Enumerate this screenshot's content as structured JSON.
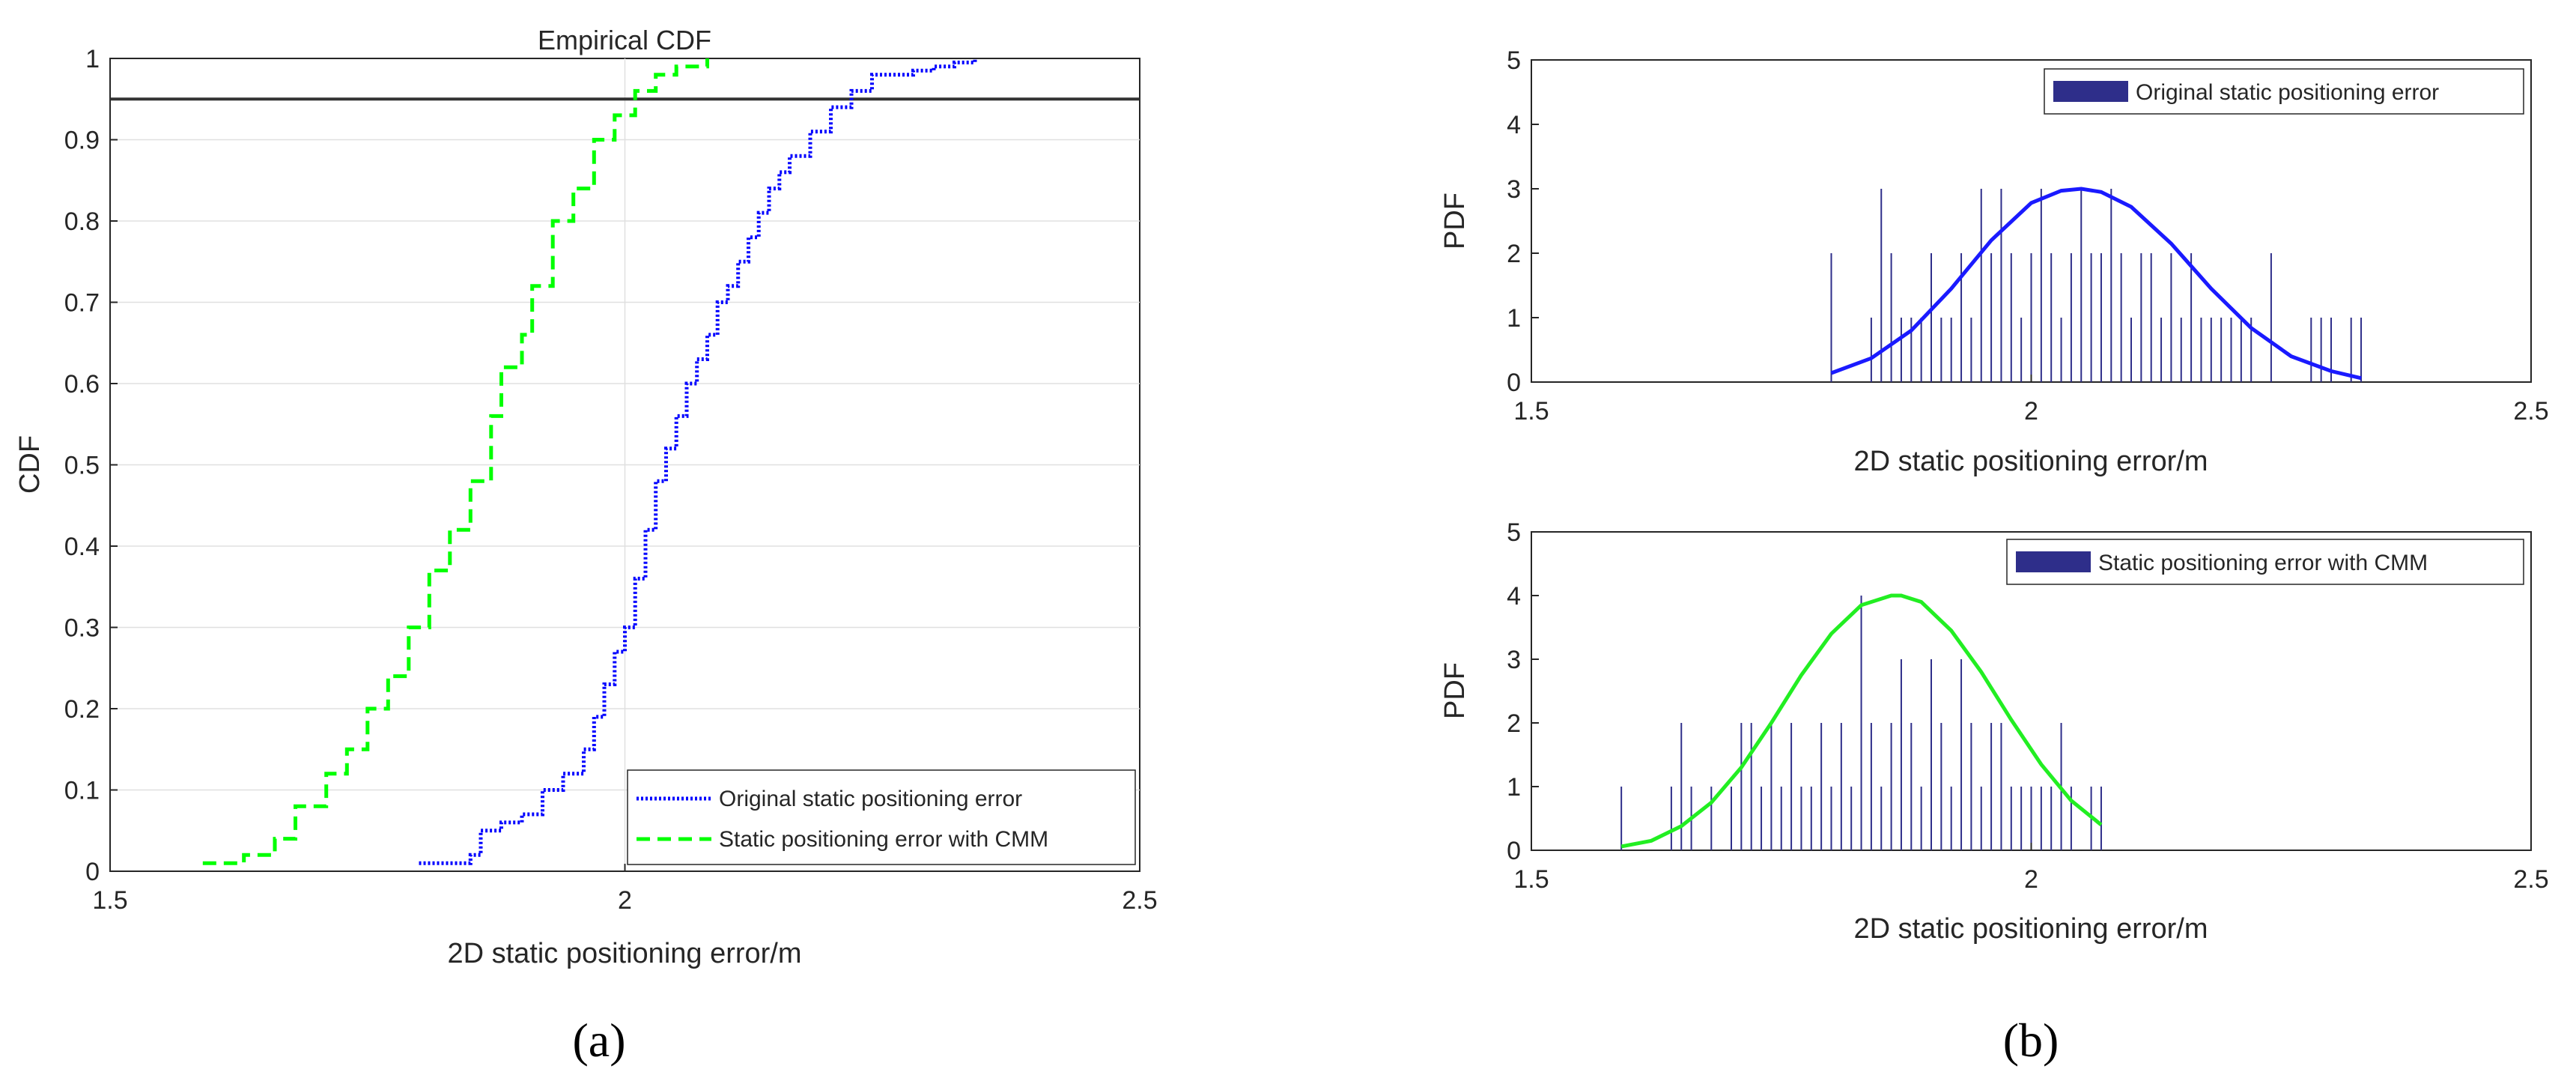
{
  "chart_data": [
    {
      "panel": "a",
      "type": "line",
      "title": "Empirical CDF",
      "xlabel": "2D static positioning error/m",
      "ylabel": "CDF",
      "xlim": [
        1.5,
        2.5
      ],
      "ylim": [
        0,
        1
      ],
      "xticks": [
        "1.5",
        "2",
        "2.5"
      ],
      "yticks": [
        "0",
        "0.1",
        "0.2",
        "0.3",
        "0.4",
        "0.5",
        "0.6",
        "0.7",
        "0.8",
        "0.9",
        "1"
      ],
      "grid": true,
      "legend_position": "bottom-right",
      "reference_line_y": 0.95,
      "reference_line_color": "#333333",
      "series": [
        {
          "name": "Original static positioning error",
          "color": "#0000ff",
          "style": "dotted",
          "x": [
            1.8,
            1.85,
            1.86,
            1.88,
            1.9,
            1.92,
            1.94,
            1.96,
            1.97,
            1.98,
            1.99,
            2.0,
            2.01,
            2.02,
            2.03,
            2.04,
            2.05,
            2.06,
            2.07,
            2.08,
            2.09,
            2.1,
            2.11,
            2.12,
            2.13,
            2.14,
            2.15,
            2.16,
            2.18,
            2.2,
            2.22,
            2.24,
            2.26,
            2.28,
            2.3,
            2.32,
            2.34
          ],
          "y": [
            0.01,
            0.02,
            0.05,
            0.06,
            0.07,
            0.1,
            0.12,
            0.15,
            0.19,
            0.23,
            0.27,
            0.3,
            0.36,
            0.42,
            0.48,
            0.52,
            0.56,
            0.6,
            0.63,
            0.66,
            0.7,
            0.72,
            0.75,
            0.78,
            0.81,
            0.84,
            0.86,
            0.88,
            0.91,
            0.94,
            0.96,
            0.98,
            0.98,
            0.985,
            0.99,
            0.995,
            1.0
          ]
        },
        {
          "name": "Static positioning error with CMM",
          "color": "#00ff00",
          "style": "dashed",
          "x": [
            1.59,
            1.63,
            1.66,
            1.68,
            1.71,
            1.73,
            1.75,
            1.77,
            1.79,
            1.81,
            1.83,
            1.85,
            1.87,
            1.88,
            1.9,
            1.91,
            1.93,
            1.95,
            1.97,
            1.99,
            2.01,
            2.03,
            2.05,
            2.08
          ],
          "y": [
            0.01,
            0.02,
            0.04,
            0.08,
            0.12,
            0.15,
            0.2,
            0.24,
            0.3,
            0.37,
            0.42,
            0.48,
            0.56,
            0.62,
            0.66,
            0.72,
            0.8,
            0.84,
            0.9,
            0.93,
            0.96,
            0.98,
            0.99,
            1.0
          ]
        }
      ],
      "caption": "(a)"
    },
    {
      "panel": "b-top",
      "type": "bar",
      "title": "",
      "xlabel": "2D static positioning error/m",
      "ylabel": "PDF",
      "xlim": [
        1.5,
        2.5
      ],
      "ylim": [
        0,
        5
      ],
      "xticks": [
        "1.5",
        "2",
        "2.5"
      ],
      "yticks": [
        "0",
        "1",
        "2",
        "3",
        "4",
        "5"
      ],
      "legend_position": "top-right",
      "series": [
        {
          "name": "Original static positioning error",
          "color": "#2e2e8a",
          "x": [
            1.8,
            1.84,
            1.85,
            1.86,
            1.87,
            1.88,
            1.89,
            1.9,
            1.91,
            1.92,
            1.93,
            1.94,
            1.95,
            1.96,
            1.97,
            1.98,
            1.99,
            2.0,
            2.01,
            2.02,
            2.03,
            2.04,
            2.05,
            2.06,
            2.07,
            2.08,
            2.09,
            2.1,
            2.11,
            2.12,
            2.13,
            2.14,
            2.15,
            2.16,
            2.17,
            2.18,
            2.19,
            2.2,
            2.21,
            2.22,
            2.24,
            2.28,
            2.29,
            2.3,
            2.32,
            2.33
          ],
          "values": [
            2,
            1,
            3,
            2,
            1,
            1,
            1,
            2,
            1,
            1,
            2,
            1,
            3,
            2,
            3,
            2,
            1,
            2,
            3,
            2,
            1,
            2,
            3,
            2,
            2,
            3,
            2,
            1,
            2,
            2,
            1,
            2,
            1,
            2,
            1,
            1,
            1,
            1,
            1,
            1,
            2,
            1,
            1,
            1,
            1,
            1
          ]
        },
        {
          "name": "",
          "type": "line",
          "color": "#1a1aff",
          "x": [
            1.8,
            1.84,
            1.88,
            1.92,
            1.96,
            2.0,
            2.03,
            2.05,
            2.07,
            2.1,
            2.14,
            2.18,
            2.22,
            2.26,
            2.3,
            2.33
          ],
          "y": [
            0.14,
            0.37,
            0.8,
            1.45,
            2.2,
            2.78,
            2.97,
            3.0,
            2.95,
            2.72,
            2.15,
            1.45,
            0.84,
            0.4,
            0.17,
            0.06
          ]
        }
      ]
    },
    {
      "panel": "b-bottom",
      "type": "bar",
      "title": "",
      "xlabel": "2D static positioning error/m",
      "ylabel": "PDF",
      "xlim": [
        1.5,
        2.5
      ],
      "ylim": [
        0,
        5
      ],
      "xticks": [
        "1.5",
        "2",
        "2.5"
      ],
      "yticks": [
        "0",
        "1",
        "2",
        "3",
        "4",
        "5"
      ],
      "legend_position": "top-right",
      "series": [
        {
          "name": "Static positioning error with CMM",
          "color": "#2e2e8a",
          "x": [
            1.59,
            1.64,
            1.65,
            1.66,
            1.68,
            1.7,
            1.71,
            1.72,
            1.73,
            1.74,
            1.75,
            1.76,
            1.77,
            1.78,
            1.79,
            1.8,
            1.81,
            1.82,
            1.83,
            1.84,
            1.85,
            1.86,
            1.87,
            1.88,
            1.89,
            1.9,
            1.91,
            1.92,
            1.93,
            1.94,
            1.95,
            1.96,
            1.97,
            1.98,
            1.99,
            2.0,
            2.01,
            2.02,
            2.03,
            2.04,
            2.06,
            2.07
          ],
          "values": [
            1,
            1,
            2,
            1,
            1,
            1,
            2,
            2,
            1,
            2,
            1,
            2,
            1,
            1,
            2,
            1,
            2,
            1,
            4,
            2,
            1,
            2,
            3,
            2,
            1,
            3,
            2,
            1,
            3,
            2,
            1,
            2,
            2,
            1,
            1,
            1,
            1,
            1,
            2,
            1,
            1,
            1
          ]
        },
        {
          "name": "",
          "type": "line",
          "color": "#22ee22",
          "x": [
            1.59,
            1.62,
            1.65,
            1.68,
            1.71,
            1.74,
            1.77,
            1.8,
            1.83,
            1.86,
            1.87,
            1.89,
            1.92,
            1.95,
            1.98,
            2.01,
            2.04,
            2.07
          ],
          "y": [
            0.06,
            0.15,
            0.38,
            0.75,
            1.3,
            2.0,
            2.75,
            3.4,
            3.85,
            4.0,
            4.0,
            3.9,
            3.45,
            2.8,
            2.05,
            1.35,
            0.78,
            0.4
          ]
        }
      ],
      "caption": "(b)"
    }
  ]
}
